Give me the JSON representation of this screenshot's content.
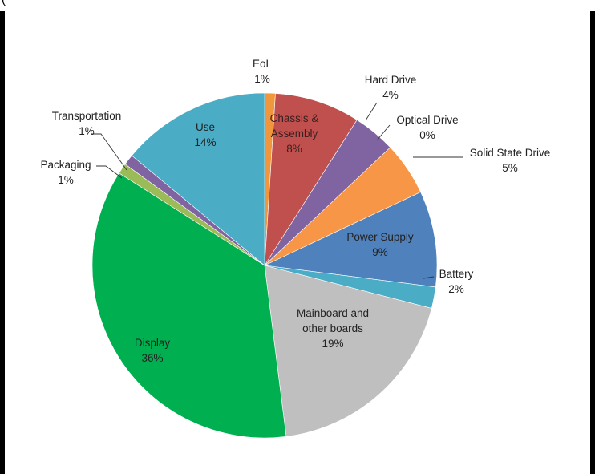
{
  "header_fragment": "(",
  "chart_data": {
    "type": "pie",
    "title": "",
    "start_angle_deg": 0,
    "direction": "clockwise",
    "slices": [
      {
        "name": "EoL",
        "value": 1,
        "value_label": "1%",
        "color": "#F0963C"
      },
      {
        "name": "Chassis & Assembly",
        "value": 8,
        "value_label": "8%",
        "color": "#C0504D"
      },
      {
        "name": "Hard Drive",
        "value": 4,
        "value_label": "4%",
        "color": "#8064A2"
      },
      {
        "name": "Optical Drive",
        "value": 0,
        "value_label": "0%",
        "color": "#7F7F7F"
      },
      {
        "name": "Solid State Drive",
        "value": 5,
        "value_label": "5%",
        "color": "#F79646"
      },
      {
        "name": "Power Supply",
        "value": 9,
        "value_label": "9%",
        "color": "#4F81BD"
      },
      {
        "name": "Battery",
        "value": 2,
        "value_label": "2%",
        "color": "#4BACC6"
      },
      {
        "name": "Mainboard and other boards",
        "value": 19,
        "value_label": "19%",
        "color": "#BFBFBF"
      },
      {
        "name": "Display",
        "value": 36,
        "value_label": "36%",
        "color": "#00B050"
      },
      {
        "name": "Packaging",
        "value": 1,
        "value_label": "1%",
        "color": "#9BBB59"
      },
      {
        "name": "Transportation",
        "value": 1,
        "value_label": "1%",
        "color": "#8064A2"
      },
      {
        "name": "Use",
        "value": 14,
        "value_label": "14%",
        "color": "#4BACC6"
      }
    ],
    "labels": [
      {
        "name_lines": [
          "EoL"
        ],
        "value_label": "1%"
      },
      {
        "name_lines": [
          "Chassis &",
          "Assembly"
        ],
        "value_label": "8%"
      },
      {
        "name_lines": [
          "Hard Drive"
        ],
        "value_label": "4%"
      },
      {
        "name_lines": [
          "Optical Drive"
        ],
        "value_label": "0%"
      },
      {
        "name_lines": [
          "Solid State Drive"
        ],
        "value_label": "5%"
      },
      {
        "name_lines": [
          "Power Supply"
        ],
        "value_label": "9%"
      },
      {
        "name_lines": [
          "Battery"
        ],
        "value_label": "2%"
      },
      {
        "name_lines": [
          "Mainboard and",
          "other boards"
        ],
        "value_label": "19%"
      },
      {
        "name_lines": [
          "Display"
        ],
        "value_label": "36%"
      },
      {
        "name_lines": [
          "Packaging"
        ],
        "value_label": "1%"
      },
      {
        "name_lines": [
          "Transportation"
        ],
        "value_label": "1%"
      },
      {
        "name_lines": [
          "Use"
        ],
        "value_label": "14%"
      }
    ]
  }
}
